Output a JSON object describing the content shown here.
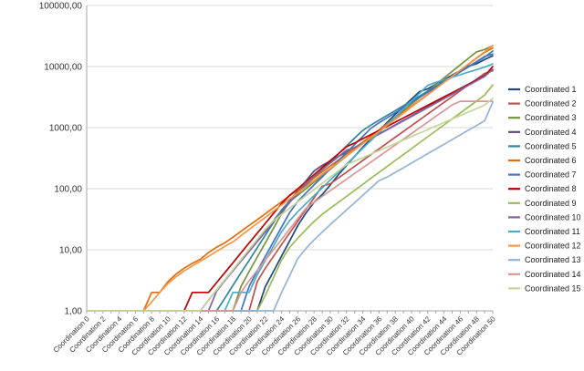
{
  "chart_data": {
    "type": "line",
    "y_scale": "log",
    "ylim": [
      1,
      100000
    ],
    "grid": true,
    "legend_placement": "right",
    "y_ticks": [
      {
        "value": 1,
        "label": "1,00"
      },
      {
        "value": 10,
        "label": "10,00"
      },
      {
        "value": 100,
        "label": "100,00"
      },
      {
        "value": 1000,
        "label": "1000,00"
      },
      {
        "value": 10000,
        "label": "10000,00"
      },
      {
        "value": 100000,
        "label": "100000,00"
      }
    ],
    "categories": [
      "Coordination 0",
      "Coordination 1",
      "Coordination 2",
      "Coordination 3",
      "Coordination 4",
      "Coordination 5",
      "Coordination 6",
      "Coordination 7",
      "Coordination 8",
      "Coordination 9",
      "Coordination 10",
      "Coordination 11",
      "Coordination 12",
      "Coordination 13",
      "Coordination 14",
      "Coordination 15",
      "Coordination 16",
      "Coordination 17",
      "Coordination 18",
      "Coordination 19",
      "Coordination 20",
      "Coordination 21",
      "Coordination 22",
      "Coordination 23",
      "Coordination 24",
      "Coordination 25",
      "Coordination 26",
      "Coordination 27",
      "Coordination 28",
      "Coordination 29",
      "Coordination 30",
      "Coordination 31",
      "Coordination 32",
      "Coordination 33",
      "Coordination 34",
      "Coordination 35",
      "Coordination 36",
      "Coordination 37",
      "Coordination 38",
      "Coordination 39",
      "Coordination 40",
      "Coordination 41",
      "Coordination 42",
      "Coordination 43",
      "Coordination 44",
      "Coordination 45",
      "Coordination 46",
      "Coordination 47",
      "Coordination 48",
      "Coordination 49",
      "Coordination 50"
    ],
    "x_tick_labels_shown": [
      "Coordination 0",
      "Coordination 2",
      "Coordination 4",
      "Coordination 6",
      "Coordination 8",
      "Coordination 10",
      "Coordination 12",
      "Coordination 14",
      "Coordination 16",
      "Coordination 18",
      "Coordination 20",
      "Coordination 22",
      "Coordination 24",
      "Coordination 26",
      "Coordination 28",
      "Coordination 30",
      "Coordination 32",
      "Coordination 34",
      "Coordination 36",
      "Coordination 38",
      "Coordination 40",
      "Coordination 42",
      "Coordination 44",
      "Coordination 46",
      "Coordination 48",
      "Coordination 50"
    ],
    "series": [
      {
        "name": "Coordinated 1",
        "color": "#1f497d",
        "start": 21,
        "end_value": 15000,
        "values": [
          1,
          1,
          1,
          1,
          1,
          1,
          1,
          1,
          1,
          1,
          1,
          1,
          1,
          1,
          1,
          1,
          1,
          1,
          1,
          1,
          1,
          1,
          2.5,
          4.4,
          7.9,
          14,
          25,
          40,
          60,
          80,
          115,
          170,
          240,
          340,
          480,
          650,
          900,
          1220,
          1650,
          2210,
          2940,
          3900,
          4320,
          5130,
          6100,
          7240,
          8590,
          10200,
          11100,
          13000,
          15000
        ]
      },
      {
        "name": "Coordinated 2",
        "color": "#c0504d",
        "start": 20,
        "end_value": 8500,
        "values": [
          1,
          1,
          1,
          1,
          1,
          1,
          1,
          1,
          1,
          1,
          1,
          1,
          1,
          1,
          1,
          1,
          1,
          1,
          1,
          1,
          1,
          3,
          5,
          7.8,
          12.2,
          18.9,
          29.4,
          45.7,
          70.9,
          110,
          120,
          150,
          187,
          233,
          290,
          361,
          449,
          559,
          696,
          866,
          1078,
          1342,
          1670,
          2079,
          2587,
          3220,
          4008,
          4988,
          6208,
          7727,
          8500
        ]
      },
      {
        "name": "Coordinated 3",
        "color": "#77933c",
        "start": 18,
        "end_value": 22000,
        "values": [
          1,
          1,
          1,
          1,
          1,
          1,
          1,
          1,
          1,
          1,
          1,
          1,
          1,
          1,
          1,
          1,
          1,
          1,
          1,
          2.5,
          4.4,
          7.6,
          13,
          22.5,
          38.8,
          62,
          78,
          100,
          128,
          163,
          209,
          267,
          341,
          436,
          557,
          713,
          912,
          1166,
          1491,
          1906,
          2437,
          3116,
          3985,
          5095,
          6514,
          8330,
          10650,
          13620,
          17410,
          19000,
          22000
        ]
      },
      {
        "name": "Coordinated 4",
        "color": "#604a7b",
        "start": 14,
        "end_value": 9000,
        "values": [
          1,
          1,
          1,
          1,
          1,
          1,
          1,
          1,
          1,
          1,
          1,
          1,
          1,
          1,
          1,
          1.5,
          2.2,
          3.2,
          4.6,
          6.7,
          9.8,
          14.2,
          20.7,
          30,
          43.7,
          63.5,
          92.3,
          134,
          195,
          240,
          285,
          337,
          400,
          474,
          562,
          666,
          789,
          935,
          1108,
          1313,
          1556,
          1845,
          2187,
          2592,
          3072,
          3641,
          4316,
          5116,
          6064,
          7188,
          9000
        ]
      },
      {
        "name": "Coordinated 5",
        "color": "#31859b",
        "start": 16,
        "end_value": 18000,
        "values": [
          1,
          1,
          1,
          1,
          1,
          1,
          1,
          1,
          1,
          1,
          1,
          1,
          1,
          1,
          1,
          1,
          1,
          1.6,
          2.6,
          4.2,
          6.7,
          10.8,
          17.4,
          28,
          45,
          62,
          84,
          113,
          152,
          205,
          276,
          372,
          501,
          675,
          900,
          1100,
          1320,
          1585,
          1900,
          2280,
          2740,
          3290,
          3950,
          4740,
          5690,
          6830,
          8200,
          9840,
          11800,
          14200,
          18000
        ]
      },
      {
        "name": "Coordinated 6",
        "color": "#e46c0a",
        "start": 7,
        "end_value": 20000,
        "values": [
          1,
          1,
          1,
          1,
          1,
          1,
          1,
          1,
          2,
          2,
          3,
          4,
          5,
          6,
          7,
          9,
          11,
          13,
          16,
          20,
          25,
          31,
          39,
          49,
          61,
          77,
          96,
          120,
          150,
          188,
          236,
          295,
          370,
          464,
          581,
          728,
          912,
          1140,
          1430,
          1790,
          2240,
          2810,
          3520,
          4410,
          5530,
          6920,
          8670,
          10860,
          13610,
          17050,
          20000
        ]
      },
      {
        "name": "Coordinated 7",
        "color": "#4472c4",
        "start": 19,
        "end_value": 16000,
        "values": [
          1,
          1,
          1,
          1,
          1,
          1,
          1,
          1,
          1,
          1,
          1,
          1,
          1,
          1,
          1,
          1,
          1,
          1,
          1,
          1,
          2.5,
          4.5,
          7.8,
          13.6,
          23.5,
          40.8,
          62,
          85,
          115,
          156,
          212,
          288,
          390,
          530,
          720,
          976,
          1200,
          1450,
          1760,
          2130,
          2580,
          3130,
          3800,
          4600,
          5580,
          6760,
          8190,
          9930,
          12040,
          14600,
          16000
        ]
      },
      {
        "name": "Coordinated 8",
        "color": "#c00000",
        "start": 11,
        "end_value": 10000,
        "values": [
          1,
          1,
          1,
          1,
          1,
          1,
          1,
          1,
          1,
          1,
          1,
          1,
          1,
          2,
          2,
          2,
          2.9,
          4.2,
          6.1,
          8.9,
          12.9,
          18.7,
          27.1,
          39.3,
          57,
          78,
          100,
          130,
          170,
          221,
          288,
          374,
          487,
          560,
          660,
          770,
          900,
          1050,
          1230,
          1440,
          1690,
          1980,
          2320,
          2720,
          3180,
          3730,
          4370,
          5120,
          6000,
          7030,
          10000
        ]
      },
      {
        "name": "Coordinated 9",
        "color": "#9bbb59",
        "start": 21,
        "end_value": 5000,
        "values": [
          1,
          1,
          1,
          1,
          1,
          1,
          1,
          1,
          1,
          1,
          1,
          1,
          1,
          1,
          1,
          1,
          1,
          1,
          1,
          1,
          1,
          1,
          1.8,
          3.5,
          6.8,
          11,
          15.5,
          21.4,
          29,
          38,
          48,
          60,
          75,
          94,
          118,
          148,
          185,
          231,
          290,
          362,
          453,
          567,
          709,
          887,
          1110,
          1390,
          1740,
          2170,
          2720,
          3400,
          5000
        ]
      },
      {
        "name": "Coordinated 10",
        "color": "#8064a2",
        "start": 15,
        "end_value": 9000,
        "values": [
          1,
          1,
          1,
          1,
          1,
          1,
          1,
          1,
          1,
          1,
          1,
          1,
          1,
          1,
          1,
          1,
          2.1,
          3.1,
          4.5,
          6.5,
          9.4,
          13.6,
          19.7,
          28.5,
          41.2,
          59.6,
          86.2,
          125,
          160,
          205,
          262,
          335,
          428,
          470,
          560,
          660,
          780,
          920,
          1090,
          1290,
          1520,
          1800,
          2130,
          2520,
          2980,
          3520,
          4160,
          4920,
          5820,
          6880,
          9000
        ]
      },
      {
        "name": "Coordinated 11",
        "color": "#4bacc6",
        "start": 17,
        "end_value": 11000,
        "values": [
          1,
          1,
          1,
          1,
          1,
          1,
          1,
          1,
          1,
          1,
          1,
          1,
          1,
          1,
          1,
          1,
          1,
          1,
          2,
          2,
          2,
          3.9,
          6.7,
          11.5,
          19.8,
          30,
          42,
          57,
          77,
          103,
          139,
          187,
          252,
          339,
          456,
          615,
          828,
          1114,
          1500,
          2020,
          2720,
          3660,
          4930,
          5520,
          6080,
          6690,
          7360,
          8100,
          8910,
          9810,
          11000
        ]
      },
      {
        "name": "Coordinated 12",
        "color": "#f79646",
        "start": 6,
        "end_value": 22000,
        "values": [
          1,
          1,
          1,
          1,
          1,
          1,
          1,
          1,
          1.4,
          2,
          2.8,
          3.6,
          4.5,
          5.4,
          6.5,
          7.8,
          9.4,
          11.3,
          13.5,
          17,
          21.5,
          27,
          34,
          43,
          54,
          68,
          86,
          108,
          136,
          172,
          216,
          272,
          343,
          432,
          545,
          686,
          865,
          1090,
          1370,
          1730,
          2180,
          2750,
          3460,
          4360,
          5490,
          6920,
          8720,
          10990,
          13840,
          17440,
          22000
        ]
      },
      {
        "name": "Coordinated 13",
        "color": "#95b3d7",
        "start": 22,
        "end_value": 2600,
        "values": [
          1,
          1,
          1,
          1,
          1,
          1,
          1,
          1,
          1,
          1,
          1,
          1,
          1,
          1,
          1,
          1,
          1,
          1,
          1,
          1,
          1,
          1,
          1,
          1,
          2,
          3.8,
          7.2,
          10.5,
          14.5,
          19.5,
          26,
          34,
          45,
          59,
          78,
          103,
          136,
          155,
          185,
          220,
          263,
          314,
          375,
          447,
          534,
          637,
          760,
          907,
          1083,
          1293,
          2600
        ]
      },
      {
        "name": "Coordinated 14",
        "color": "#d99694",
        "start": 18,
        "end_value": 2700,
        "values": [
          1,
          1,
          1,
          1,
          1,
          1,
          1,
          1,
          1,
          1,
          1,
          1,
          1,
          1,
          1,
          1,
          1,
          1,
          1,
          2,
          3.1,
          4.6,
          6.8,
          10,
          14.8,
          21.9,
          32.4,
          47.9,
          60,
          75,
          93,
          115,
          143,
          178,
          220,
          273,
          339,
          420,
          521,
          646,
          801,
          994,
          1233,
          1530,
          1898,
          2355,
          2700,
          2700,
          2700,
          2700,
          2700
        ]
      },
      {
        "name": "Coordinated 15",
        "color": "#c3d69b",
        "start": 14,
        "end_value": 3000,
        "values": [
          1,
          1,
          1,
          1,
          1,
          1,
          1,
          1,
          1,
          1,
          1,
          1,
          1,
          1,
          1,
          1.5,
          2.2,
          3.2,
          4.7,
          6.9,
          10.1,
          14.8,
          21.7,
          30,
          38,
          48,
          61,
          77,
          97,
          123,
          155,
          196,
          248,
          283,
          323,
          369,
          421,
          480,
          548,
          626,
          714,
          815,
          930,
          1061,
          1211,
          1382,
          1577,
          1800,
          2054,
          2344,
          3000
        ]
      }
    ]
  }
}
